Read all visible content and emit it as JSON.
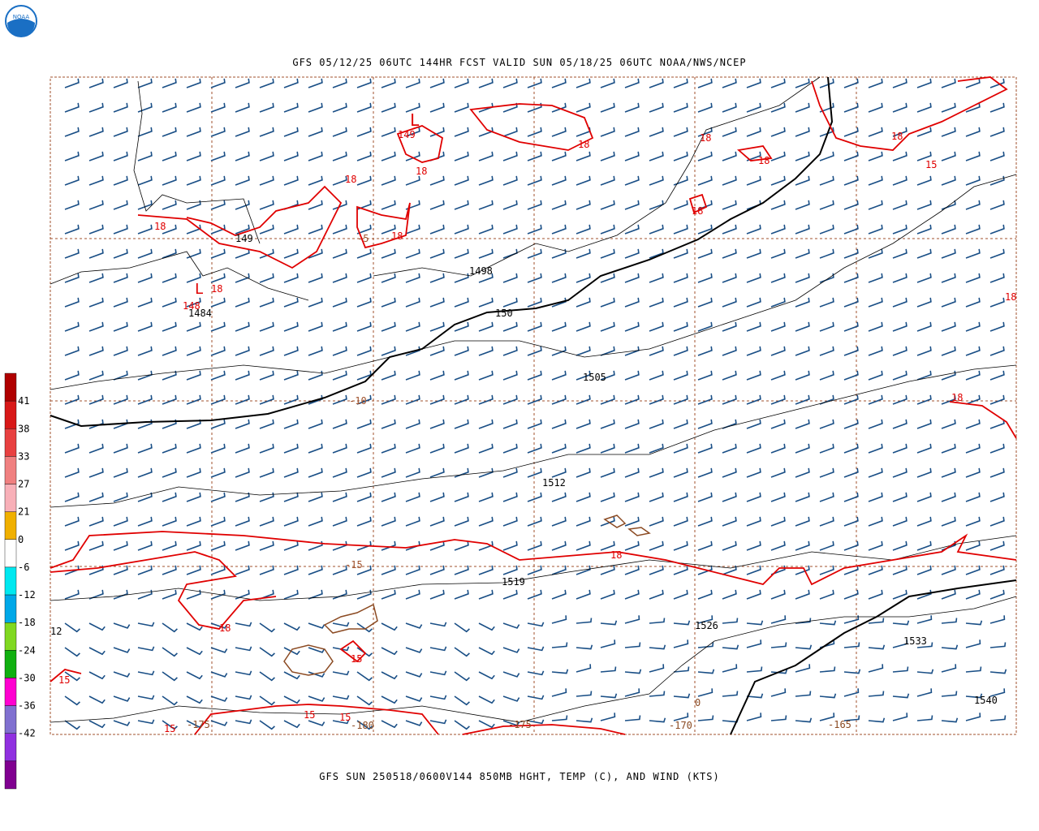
{
  "titles": {
    "top": "GFS 05/12/25 06UTC 144HR FCST VALID SUN 05/18/25 06UTC NOAA/NWS/NCEP",
    "bottom": "GFS SUN 250518/0600V144 850MB HGHT, TEMP (C), AND WIND (KTS)"
  },
  "logo": {
    "text": "NOAA",
    "color": "#1a6fc4"
  },
  "colors": {
    "wind_barb": "#1a4f86",
    "temperature": "#e00000",
    "height": "#000000",
    "coast": "#8b4a22",
    "grid": "#a0522d"
  },
  "color_scale": [
    {
      "label": "",
      "color": "#b00000"
    },
    {
      "label": "41",
      "color": "#d81818"
    },
    {
      "label": "38",
      "color": "#e84040"
    },
    {
      "label": "33",
      "color": "#f08080"
    },
    {
      "label": "27",
      "color": "#f8b0b8"
    },
    {
      "label": "21",
      "color": "#f0b000"
    },
    {
      "label": "0",
      "color": "#ffffff"
    },
    {
      "label": "-6",
      "color": "#00e8f0"
    },
    {
      "label": "-12",
      "color": "#00a8e8"
    },
    {
      "label": "-18",
      "color": "#80d820"
    },
    {
      "label": "-24",
      "color": "#10b010"
    },
    {
      "label": "-30",
      "color": "#ff00d0"
    },
    {
      "label": "-36",
      "color": "#8070d0"
    },
    {
      "label": "-42",
      "color": "#9030e0"
    },
    {
      "label": "",
      "color": "#800090"
    }
  ],
  "height_labels": [
    "149",
    "1498",
    "150",
    "1505",
    "1512",
    "1519",
    "1526",
    "1533",
    "1540",
    "1484",
    "12"
  ],
  "temperature_labels": [
    "18",
    "18",
    "18",
    "18",
    "18",
    "18",
    "18",
    "18",
    "18",
    "18",
    "18",
    "18",
    "18",
    "18",
    "15",
    "15",
    "15",
    "15",
    "15",
    "15",
    "-15",
    "-10",
    "-5"
  ],
  "low_marker": {
    "letter": "L",
    "value": "149",
    "value2": "148"
  },
  "coordinate_labels": [
    "-180",
    "-175",
    "-170",
    "-165",
    "-175",
    "0"
  ]
}
